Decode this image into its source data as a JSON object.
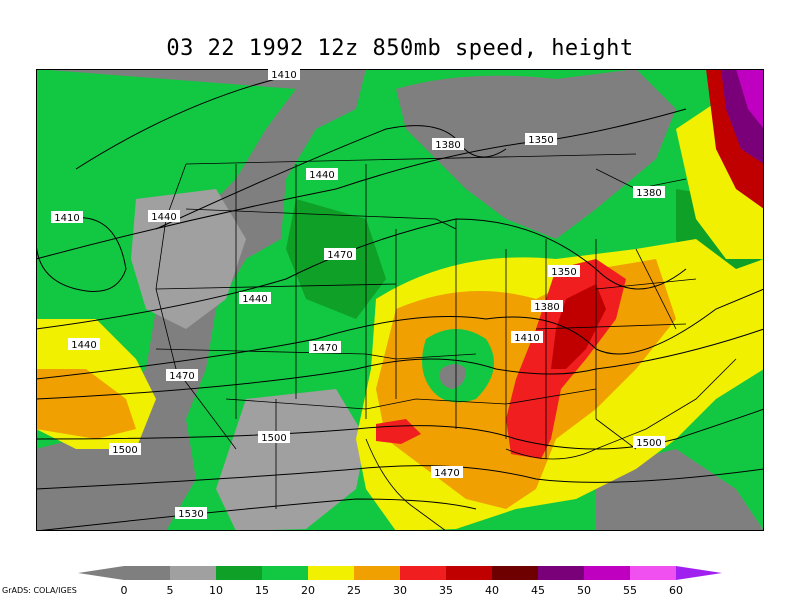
{
  "title": "03 22 1992 12z 850mb speed, height",
  "credit": "GrADS: COLA/IGES",
  "colorbar": {
    "ticks": [
      "0",
      "5",
      "10",
      "15",
      "20",
      "25",
      "30",
      "35",
      "40",
      "45",
      "50",
      "55",
      "60"
    ],
    "colors": [
      "#7f7f7f",
      "#7f7f7f",
      "#a0a0a0",
      "#0fa028",
      "#12c842",
      "#f0f000",
      "#f0a000",
      "#f01e1e",
      "#c00000",
      "#6e0000",
      "#7a007a",
      "#c000c0",
      "#f050f0",
      "#a020f0"
    ]
  },
  "contours": [
    "1410",
    "1380",
    "1350",
    "1380",
    "1440",
    "1410",
    "1440",
    "1470",
    "1350",
    "1440",
    "1380",
    "1410",
    "1440",
    "1470",
    "1470",
    "1500",
    "1500",
    "1470",
    "1530",
    "1500"
  ],
  "map": {
    "background": "#12c842",
    "field_colors": {
      "gray_dark": "#7f7f7f",
      "gray_light": "#a0a0a0",
      "green_dark": "#0fa028",
      "green": "#12c842",
      "yellow": "#f0f000",
      "orange": "#f0a000",
      "red": "#f01e1e",
      "darkred": "#c00000",
      "purple": "#7a007a",
      "magenta": "#c000c0"
    }
  }
}
